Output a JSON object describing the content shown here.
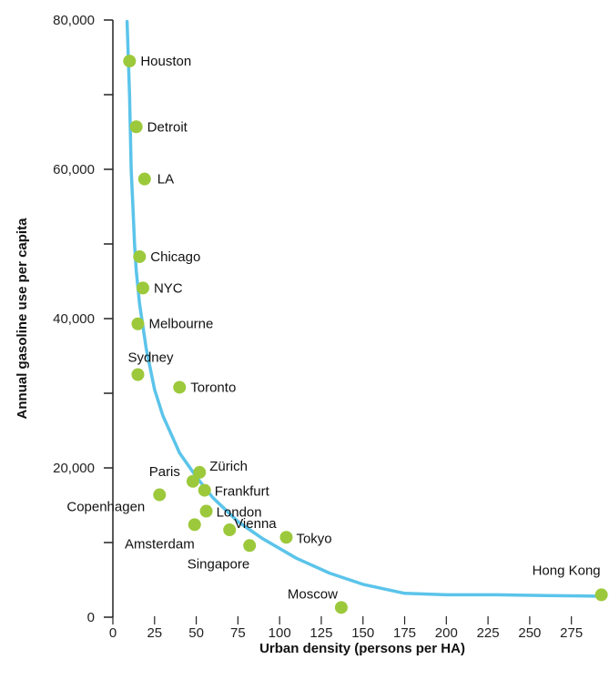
{
  "chart_data": {
    "type": "scatter",
    "title": "",
    "xlabel": "Urban density (persons per HA)",
    "ylabel": "Annual gasoline use per capita",
    "xlim": [
      0,
      290
    ],
    "ylim": [
      0,
      80000
    ],
    "x_ticks": [
      "0",
      "25",
      "50",
      "75",
      "100",
      "125",
      "150",
      "175",
      "200",
      "225",
      "250",
      "275"
    ],
    "y_tick_labels": [
      "0",
      "20,000",
      "40,000",
      "60,000",
      "80,000"
    ],
    "y_tick_values": [
      0,
      10000,
      20000,
      30000,
      40000,
      50000,
      60000,
      70000,
      80000
    ],
    "grid": false,
    "colors": {
      "points": "#9cc93b",
      "curve": "#5bc4ea",
      "axis": "#222222"
    },
    "points": [
      {
        "label": "Houston",
        "x": 10,
        "y": 74500
      },
      {
        "label": "Detroit",
        "x": 14,
        "y": 65700
      },
      {
        "label": "LA",
        "x": 19,
        "y": 58700
      },
      {
        "label": "Chicago",
        "x": 16,
        "y": 48300
      },
      {
        "label": "NYC",
        "x": 18,
        "y": 44100
      },
      {
        "label": "Melbourne",
        "x": 15,
        "y": 39300
      },
      {
        "label": "Sydney",
        "x": 15,
        "y": 32500
      },
      {
        "label": "Toronto",
        "x": 40,
        "y": 30800
      },
      {
        "label": "Zürich",
        "x": 52,
        "y": 19400
      },
      {
        "label": "Paris",
        "x": 48,
        "y": 18200
      },
      {
        "label": "Frankfurt",
        "x": 55,
        "y": 17000
      },
      {
        "label": "Copenhagen",
        "x": 28,
        "y": 16400
      },
      {
        "label": "London",
        "x": 56,
        "y": 14200
      },
      {
        "label": "Amsterdam",
        "x": 49,
        "y": 12400
      },
      {
        "label": "Vienna",
        "x": 70,
        "y": 11700
      },
      {
        "label": "Tokyo",
        "x": 104,
        "y": 10700
      },
      {
        "label": "Singapore",
        "x": 82,
        "y": 9600
      },
      {
        "label": "Moscow",
        "x": 137,
        "y": 1300
      },
      {
        "label": "Hong Kong",
        "x": 293,
        "y": 3000
      }
    ],
    "trend_curve": {
      "x": [
        8.5,
        10,
        11,
        12,
        13,
        14,
        16,
        20,
        25,
        30,
        40,
        50,
        60,
        75,
        90,
        110,
        130,
        150,
        175,
        200,
        230,
        260,
        293
      ],
      "y": [
        79800,
        70000,
        60000,
        55000,
        50000,
        46500,
        42000,
        36000,
        30500,
        27000,
        22000,
        18800,
        16000,
        12800,
        10500,
        7900,
        5900,
        4400,
        3200,
        3000,
        3000,
        2900,
        2800
      ]
    }
  }
}
